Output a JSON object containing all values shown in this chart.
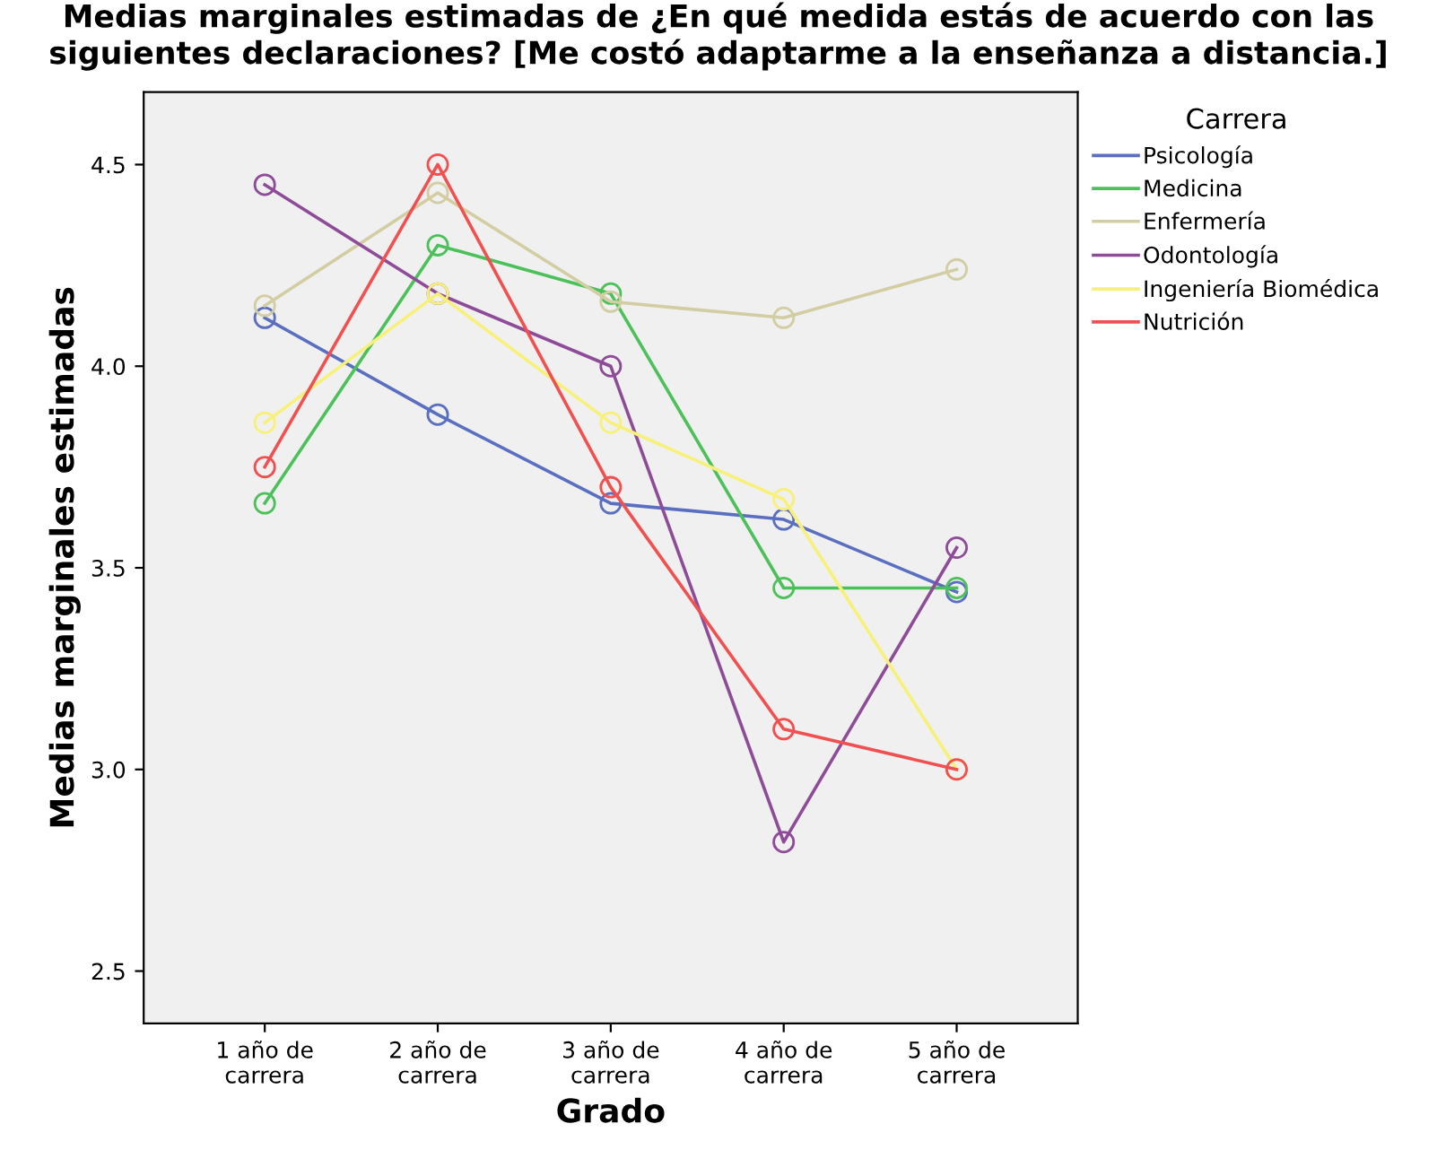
{
  "chart_data": {
    "type": "line",
    "title": "Medias marginales estimadas de ¿En qué medida estás de acuerdo con las siguientes declaraciones? [Me costó adaptarme a la enseñanza a distancia.]",
    "xlabel": "Grado",
    "ylabel": "Medias marginales estimadas",
    "legend_title": "Carrera",
    "categories": [
      "1 año de\ncarrera",
      "2 año de\ncarrera",
      "3 año de\ncarrera",
      "4 año de\ncarrera",
      "5 año de\ncarrera"
    ],
    "series": [
      {
        "name": "Psicología",
        "color": "#5a6fbf",
        "values": [
          4.12,
          3.88,
          3.66,
          3.62,
          3.44
        ]
      },
      {
        "name": "Medicina",
        "color": "#4cc15a",
        "values": [
          3.66,
          4.3,
          4.18,
          3.45,
          3.45
        ]
      },
      {
        "name": "Enfermería",
        "color": "#d3cda3",
        "values": [
          4.15,
          4.43,
          4.16,
          4.12,
          4.24
        ]
      },
      {
        "name": "Odontología",
        "color": "#8d4b98",
        "values": [
          4.45,
          4.18,
          4.0,
          2.82,
          3.55
        ]
      },
      {
        "name": "Ingeniería Biomédica",
        "color": "#f7f17a",
        "values": [
          3.86,
          4.18,
          3.86,
          3.67,
          3.0
        ]
      },
      {
        "name": "Nutrición",
        "color": "#f05050",
        "values": [
          3.75,
          4.5,
          3.7,
          3.1,
          3.0
        ]
      }
    ],
    "ylim": [
      2.37,
      4.68
    ],
    "yticks": [
      2.5,
      {
        "value": 3,
        "label": "3.0"
      },
      3.5,
      {
        "value": 4,
        "label": "4.0"
      },
      4.5
    ],
    "marker": "circle",
    "grid": false,
    "legend": "top right"
  }
}
